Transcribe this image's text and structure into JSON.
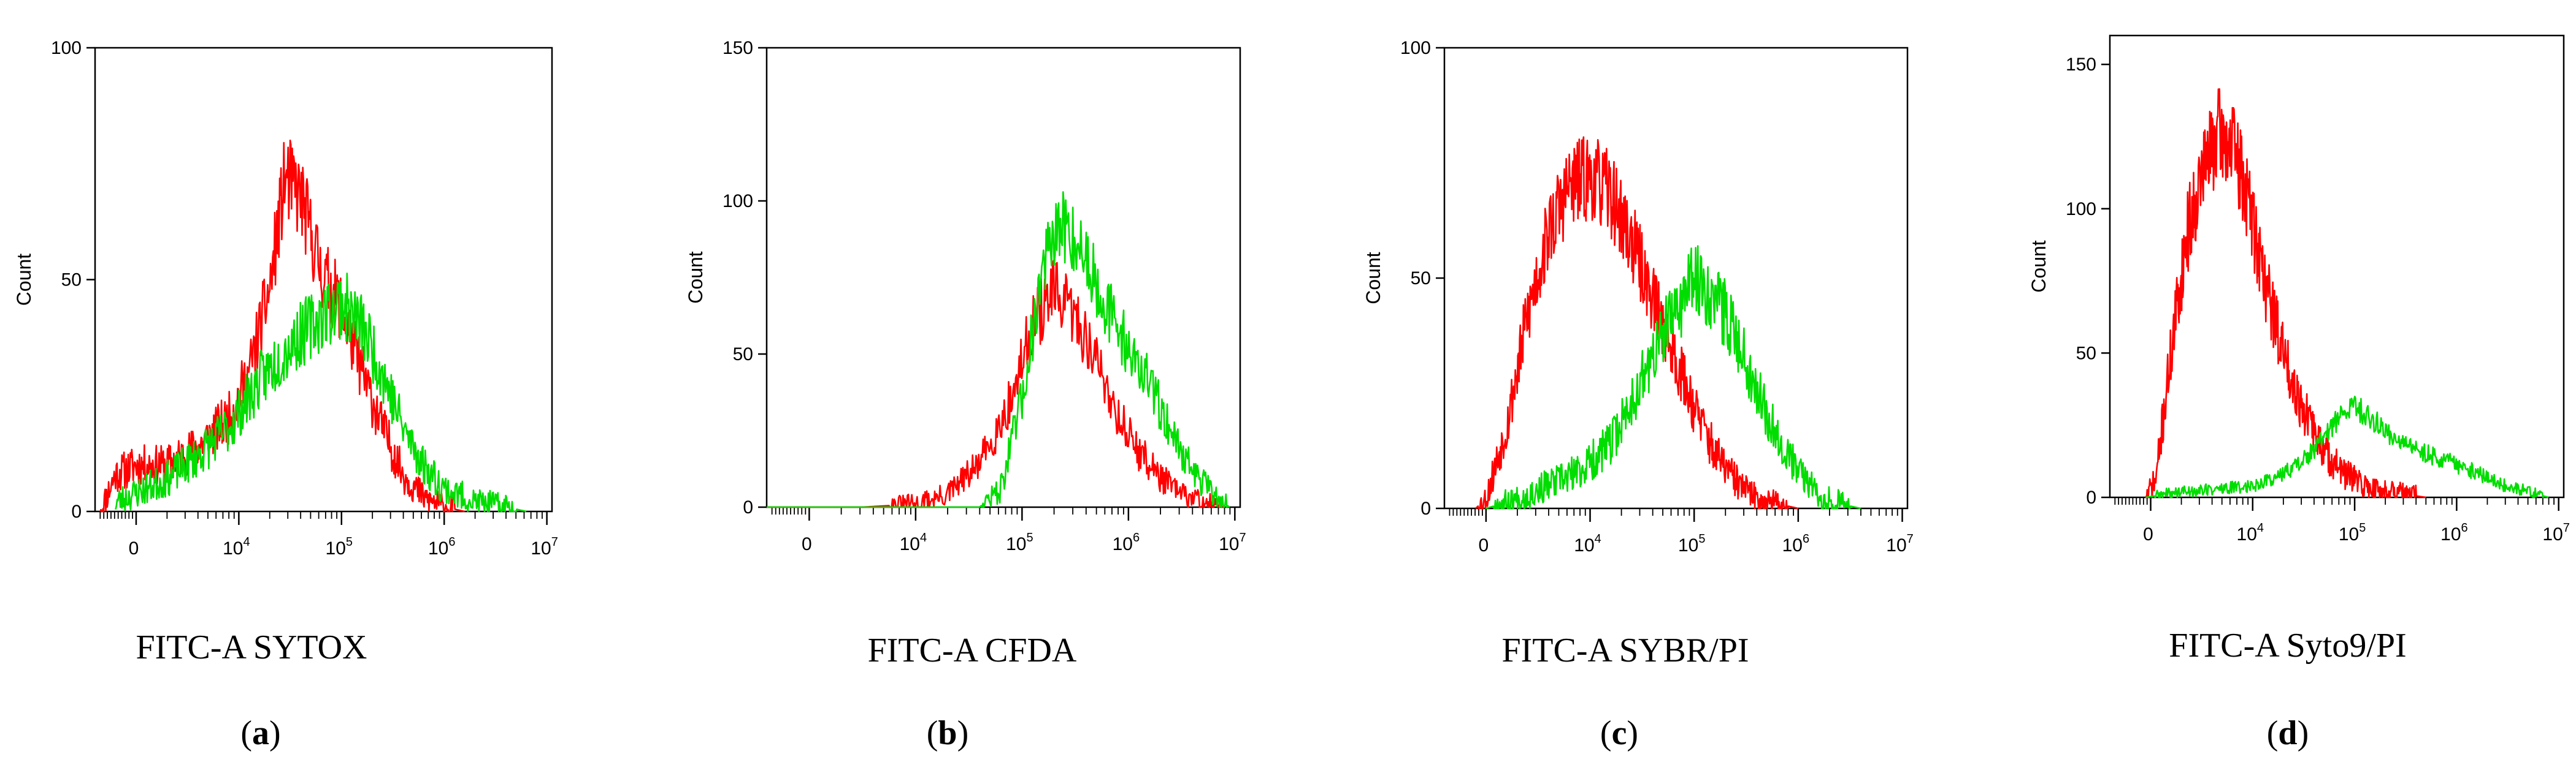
{
  "figure": {
    "panels": [
      "a",
      "b",
      "c",
      "d"
    ]
  },
  "colors": {
    "red": "#ff0000",
    "green": "#00dd00",
    "axis": "#000000"
  },
  "chart_data": [
    {
      "type": "line",
      "panel": "a",
      "panel_label": "a",
      "title": "",
      "xlabel": "FITC-A SYTOX",
      "ylabel": "Count",
      "ylim": [
        0,
        100
      ],
      "yticks": [
        "0",
        "50",
        "100"
      ],
      "xticks": [
        {
          "base": "0",
          "sup": "",
          "v": 0
        },
        {
          "base": "10",
          "sup": "4",
          "v": 1
        },
        {
          "base": "10",
          "sup": "5",
          "v": 2
        },
        {
          "base": "10",
          "sup": "6",
          "v": 3
        },
        {
          "base": "10",
          "sup": "7",
          "v": 4
        }
      ],
      "series": [
        {
          "name": "red",
          "color": "#ff0000",
          "noise": 6,
          "seed": 11,
          "x": [
            -0.35,
            -0.2,
            0,
            0.3,
            0.6,
            0.9,
            1.1,
            1.3,
            1.45,
            1.6,
            1.8,
            2.0,
            2.2,
            2.4,
            2.6,
            2.8,
            3.0,
            3.2
          ],
          "y": [
            0,
            8,
            10,
            10,
            14,
            20,
            30,
            48,
            72,
            68,
            52,
            44,
            30,
            18,
            8,
            3,
            1,
            0
          ]
        },
        {
          "name": "green",
          "color": "#00dd00",
          "noise": 6,
          "seed": 23,
          "x": [
            -0.2,
            0,
            0.3,
            0.6,
            0.9,
            1.2,
            1.5,
            1.8,
            2.0,
            2.2,
            2.4,
            2.6,
            2.8,
            3.0,
            3.3,
            3.6,
            3.8
          ],
          "y": [
            2,
            4,
            7,
            12,
            18,
            28,
            36,
            42,
            45,
            40,
            30,
            18,
            10,
            5,
            2,
            1,
            0
          ]
        }
      ]
    },
    {
      "type": "line",
      "panel": "b",
      "panel_label": "b",
      "title": "",
      "xlabel": "FITC-A CFDA",
      "ylabel": "Count",
      "ylim": [
        0,
        150
      ],
      "yticks": [
        "0",
        "50",
        "100",
        "150"
      ],
      "xticks": [
        {
          "base": "0",
          "sup": "",
          "v": 0
        },
        {
          "base": "10",
          "sup": "4",
          "v": 1
        },
        {
          "base": "10",
          "sup": "5",
          "v": 2
        },
        {
          "base": "10",
          "sup": "6",
          "v": 3
        },
        {
          "base": "10",
          "sup": "7",
          "v": 4
        }
      ],
      "series": [
        {
          "name": "red",
          "color": "#ff0000",
          "noise": 7,
          "seed": 31,
          "x": [
            -0.4,
            0.5,
            1.0,
            1.3,
            1.6,
            1.9,
            2.1,
            2.3,
            2.5,
            2.7,
            2.9,
            3.1,
            3.3,
            3.5,
            3.7,
            3.9
          ],
          "y": [
            0,
            0,
            1,
            4,
            14,
            35,
            60,
            70,
            62,
            48,
            30,
            18,
            10,
            4,
            2,
            0
          ]
        },
        {
          "name": "green",
          "color": "#00dd00",
          "noise": 7,
          "seed": 47,
          "x": [
            -0.4,
            1.0,
            1.6,
            1.8,
            2.0,
            2.2,
            2.4,
            2.6,
            2.8,
            3.0,
            3.2,
            3.4,
            3.6,
            3.8,
            3.95
          ],
          "y": [
            0,
            0,
            0,
            6,
            35,
            80,
            92,
            82,
            65,
            52,
            40,
            25,
            12,
            4,
            0
          ]
        }
      ]
    },
    {
      "type": "line",
      "panel": "c",
      "panel_label": "c",
      "title": "",
      "xlabel": "FITC-A SYBR/PI",
      "ylabel": "Count",
      "ylim": [
        0,
        100
      ],
      "yticks": [
        "0",
        "50",
        "100"
      ],
      "xticks": [
        {
          "base": "0",
          "sup": "",
          "v": 0
        },
        {
          "base": "10",
          "sup": "4",
          "v": 1
        },
        {
          "base": "10",
          "sup": "5",
          "v": 2
        },
        {
          "base": "10",
          "sup": "6",
          "v": 3
        },
        {
          "base": "10",
          "sup": "7",
          "v": 4
        }
      ],
      "series": [
        {
          "name": "red",
          "color": "#ff0000",
          "noise": 6,
          "seed": 53,
          "x": [
            -0.1,
            0,
            0.2,
            0.4,
            0.6,
            0.8,
            1.0,
            1.2,
            1.4,
            1.6,
            1.8,
            2.0,
            2.2,
            2.4,
            2.6,
            2.8,
            3.0
          ],
          "y": [
            0,
            2,
            18,
            42,
            60,
            70,
            72,
            68,
            58,
            46,
            34,
            22,
            12,
            6,
            2,
            1,
            0
          ]
        },
        {
          "name": "green",
          "color": "#00dd00",
          "noise": 6,
          "seed": 67,
          "x": [
            0,
            0.3,
            0.6,
            0.9,
            1.2,
            1.5,
            1.8,
            2.0,
            2.2,
            2.4,
            2.6,
            2.8,
            3.0,
            3.2,
            3.4,
            3.6
          ],
          "y": [
            0,
            2,
            5,
            8,
            14,
            28,
            42,
            50,
            46,
            38,
            26,
            16,
            8,
            3,
            1,
            0
          ]
        }
      ]
    },
    {
      "type": "line",
      "panel": "d",
      "panel_label": "d",
      "title": "",
      "xlabel": "FITC-A Syto9/PI",
      "ylabel": "Count",
      "ylim": [
        0,
        160
      ],
      "yticks": [
        "0",
        "50",
        "100",
        "150"
      ],
      "xticks": [
        {
          "base": "0",
          "sup": "",
          "v": 0
        },
        {
          "base": "10",
          "sup": "4",
          "v": 1
        },
        {
          "base": "10",
          "sup": "5",
          "v": 2
        },
        {
          "base": "10",
          "sup": "6",
          "v": 3
        },
        {
          "base": "10",
          "sup": "7",
          "v": 4
        }
      ],
      "series": [
        {
          "name": "red",
          "color": "#ff0000",
          "noise": 8,
          "seed": 71,
          "x": [
            -0.05,
            0.05,
            0.2,
            0.35,
            0.5,
            0.65,
            0.8,
            0.95,
            1.1,
            1.3,
            1.5,
            1.7,
            1.9,
            2.1,
            2.3,
            2.5,
            2.7
          ],
          "y": [
            0,
            6,
            50,
            90,
            112,
            126,
            122,
            104,
            78,
            50,
            30,
            16,
            8,
            4,
            2,
            1,
            0
          ]
        },
        {
          "name": "green",
          "color": "#00dd00",
          "noise": 4,
          "seed": 89,
          "x": [
            -0.05,
            0.3,
            0.7,
            1.0,
            1.3,
            1.6,
            1.8,
            2.0,
            2.2,
            2.5,
            2.8,
            3.1,
            3.4,
            3.7,
            3.9
          ],
          "y": [
            0,
            2,
            3,
            4,
            8,
            16,
            26,
            32,
            26,
            18,
            14,
            10,
            5,
            2,
            0
          ]
        }
      ]
    }
  ]
}
